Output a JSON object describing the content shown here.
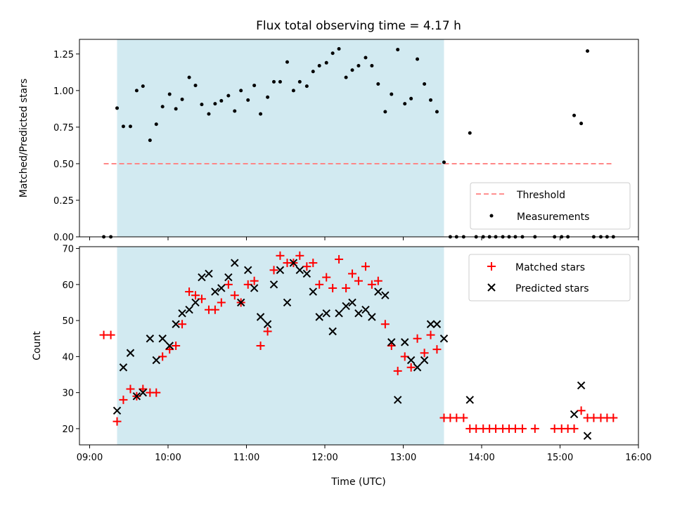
{
  "chart_data": [
    {
      "type": "scatter",
      "panel": "top",
      "title": "Flux total observing time = 4.17 h",
      "xlabel": "",
      "ylabel": "Matched/Predicted stars",
      "xlim": [
        8.87,
        16.0
      ],
      "ylim": [
        0.0,
        1.35
      ],
      "xtick_values": [
        9,
        10,
        11,
        12,
        13,
        14,
        15,
        16
      ],
      "ytick_values": [
        0.0,
        0.25,
        0.5,
        0.75,
        1.0,
        1.25
      ],
      "ytick_labels": [
        "0.00",
        "0.25",
        "0.50",
        "0.75",
        "1.00",
        "1.25"
      ],
      "observing_window": {
        "start": 9.35,
        "end": 13.52,
        "color": "#add8e6"
      },
      "threshold": {
        "name": "Threshold",
        "value": 0.5,
        "x_start": 9.18,
        "x_end": 15.68,
        "color": "#ff8080"
      },
      "legend": {
        "position": "lower right",
        "entries": [
          "Threshold",
          "Measurements"
        ]
      },
      "series": [
        {
          "name": "Measurements",
          "color": "#000000",
          "x": [
            9.18,
            9.27,
            9.35,
            9.43,
            9.52,
            9.6,
            9.68,
            9.77,
            9.85,
            9.93,
            10.02,
            10.1,
            10.18,
            10.27,
            10.35,
            10.43,
            10.52,
            10.6,
            10.68,
            10.77,
            10.85,
            10.93,
            11.02,
            11.1,
            11.18,
            11.27,
            11.35,
            11.43,
            11.52,
            11.6,
            11.68,
            11.77,
            11.85,
            11.93,
            12.02,
            12.1,
            12.18,
            12.27,
            12.35,
            12.43,
            12.52,
            12.6,
            12.68,
            12.77,
            12.85,
            12.93,
            13.02,
            13.1,
            13.18,
            13.27,
            13.35,
            13.43,
            13.52,
            13.6,
            13.68,
            13.77,
            13.85,
            13.93,
            14.02,
            14.1,
            14.18,
            14.27,
            14.35,
            14.43,
            14.52,
            14.68,
            14.93,
            15.02,
            15.1,
            15.18,
            15.27,
            15.35,
            15.43,
            15.52,
            15.6,
            15.68
          ],
          "y": [
            0.0,
            0.0,
            0.88,
            0.755,
            0.755,
            1.0,
            1.03,
            0.66,
            0.77,
            0.89,
            0.975,
            0.875,
            0.94,
            1.09,
            1.035,
            0.905,
            0.84,
            0.91,
            0.93,
            0.965,
            0.86,
            1.0,
            0.935,
            1.035,
            0.84,
            0.955,
            1.06,
            1.06,
            1.195,
            1.0,
            1.06,
            1.03,
            1.13,
            1.17,
            1.19,
            1.255,
            1.285,
            1.09,
            1.14,
            1.17,
            1.225,
            1.17,
            1.045,
            0.855,
            0.975,
            1.28,
            0.91,
            0.945,
            1.215,
            1.045,
            0.935,
            0.855,
            0.51,
            0.0,
            0.0,
            0.0,
            0.71,
            0.0,
            0.0,
            0.0,
            0.0,
            0.0,
            0.0,
            0.0,
            0.0,
            0.0,
            0.0,
            0.0,
            0.0,
            0.83,
            0.775,
            1.27,
            0.0,
            0.0,
            0.0,
            0.0
          ]
        }
      ]
    },
    {
      "type": "scatter",
      "panel": "bottom",
      "title": "",
      "xlabel": "Time (UTC)",
      "ylabel": "Count",
      "xlim": [
        8.87,
        16.0
      ],
      "ylim": [
        15.5,
        70.5
      ],
      "xtick_values": [
        9,
        10,
        11,
        12,
        13,
        14,
        15,
        16
      ],
      "xtick_labels": [
        "09:00",
        "10:00",
        "11:00",
        "12:00",
        "13:00",
        "14:00",
        "15:00",
        "16:00"
      ],
      "ytick_values": [
        20,
        30,
        40,
        50,
        60,
        70
      ],
      "ytick_labels": [
        "20",
        "30",
        "40",
        "50",
        "60",
        "70"
      ],
      "observing_window": {
        "start": 9.35,
        "end": 13.52,
        "color": "#add8e6"
      },
      "legend": {
        "position": "top-right",
        "entries": [
          "Matched stars",
          "Predicted stars"
        ]
      },
      "series": [
        {
          "name": "Matched stars",
          "marker": "+",
          "color": "#ff0000",
          "x": [
            9.18,
            9.27,
            9.35,
            9.43,
            9.52,
            9.6,
            9.68,
            9.77,
            9.85,
            9.93,
            10.02,
            10.1,
            10.18,
            10.27,
            10.35,
            10.43,
            10.52,
            10.6,
            10.68,
            10.77,
            10.85,
            10.93,
            11.02,
            11.1,
            11.18,
            11.27,
            11.35,
            11.43,
            11.52,
            11.6,
            11.68,
            11.77,
            11.85,
            11.93,
            12.02,
            12.1,
            12.18,
            12.27,
            12.35,
            12.43,
            12.52,
            12.6,
            12.68,
            12.77,
            12.85,
            12.93,
            13.02,
            13.1,
            13.18,
            13.27,
            13.35,
            13.43,
            13.52,
            13.6,
            13.68,
            13.77,
            13.85,
            13.93,
            14.02,
            14.1,
            14.18,
            14.27,
            14.35,
            14.43,
            14.52,
            14.68,
            14.93,
            15.02,
            15.1,
            15.18,
            15.27,
            15.35,
            15.43,
            15.52,
            15.6,
            15.68
          ],
          "y": [
            46,
            46,
            22,
            28,
            31,
            29,
            31,
            30,
            30,
            40,
            42,
            43,
            49,
            58,
            57,
            56,
            53,
            53,
            55,
            60,
            57,
            55,
            60,
            61,
            43,
            47,
            64,
            68,
            66,
            66,
            68,
            65,
            66,
            60,
            62,
            59,
            67,
            59,
            63,
            61,
            65,
            60,
            61,
            49,
            43,
            36,
            40,
            37,
            45,
            41,
            46,
            42,
            23,
            23,
            23,
            23,
            20,
            20,
            20,
            20,
            20,
            20,
            20,
            20,
            20,
            20,
            20,
            20,
            20,
            20,
            25,
            23,
            23,
            23,
            23,
            23
          ]
        },
        {
          "name": "Predicted stars",
          "marker": "x",
          "color": "#000000",
          "x": [
            9.35,
            9.43,
            9.52,
            9.6,
            9.68,
            9.77,
            9.85,
            9.93,
            10.02,
            10.1,
            10.18,
            10.27,
            10.35,
            10.43,
            10.52,
            10.6,
            10.68,
            10.77,
            10.85,
            10.93,
            11.02,
            11.1,
            11.18,
            11.27,
            11.35,
            11.43,
            11.52,
            11.6,
            11.68,
            11.77,
            11.85,
            11.93,
            12.02,
            12.1,
            12.18,
            12.27,
            12.35,
            12.43,
            12.52,
            12.6,
            12.68,
            12.77,
            12.85,
            12.93,
            13.02,
            13.1,
            13.18,
            13.27,
            13.35,
            13.43,
            13.52,
            13.85,
            15.18,
            15.27,
            15.35
          ],
          "y": [
            25,
            37,
            41,
            29,
            30,
            45,
            39,
            45,
            43,
            49,
            52,
            53,
            55,
            62,
            63,
            58,
            59,
            62,
            66,
            55,
            64,
            59,
            51,
            49,
            60,
            64,
            55,
            66,
            64,
            63,
            58,
            51,
            52,
            47,
            52,
            54,
            55,
            52,
            53,
            51,
            58,
            57,
            44,
            28,
            44,
            39,
            37,
            39,
            49,
            49,
            45,
            28,
            24,
            32,
            18
          ]
        }
      ]
    }
  ]
}
